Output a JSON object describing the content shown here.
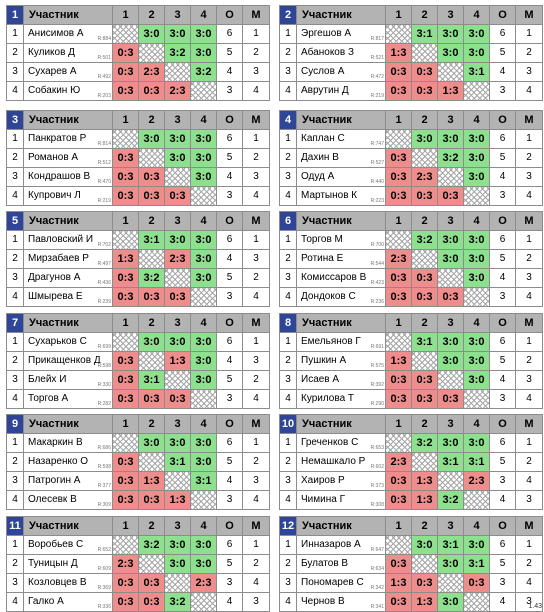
{
  "header": {
    "participant": "Участник",
    "c1": "1",
    "c2": "2",
    "c3": "3",
    "c4": "4",
    "points": "О",
    "place": "М"
  },
  "version": "1.43",
  "colors": {
    "win": "#8de08d",
    "loss": "#ef8d8d",
    "header": "#b3b3b3",
    "group_number": "#2f4597"
  },
  "groups": [
    {
      "num": "1",
      "rows": [
        {
          "name": "Анисимов А",
          "rating": "R:884",
          "s": [
            "",
            "3:0",
            "3:0",
            "3:0"
          ],
          "o": "6",
          "m": "1"
        },
        {
          "name": "Куликов Д",
          "rating": "R:501",
          "s": [
            "0:3",
            "",
            "3:2",
            "3:0"
          ],
          "o": "5",
          "m": "2"
        },
        {
          "name": "Сухарев А",
          "rating": "R:492",
          "s": [
            "0:3",
            "2:3",
            "",
            "3:2"
          ],
          "o": "4",
          "m": "3"
        },
        {
          "name": "Собакин Ю",
          "rating": "R:203",
          "s": [
            "0:3",
            "0:3",
            "2:3",
            ""
          ],
          "o": "3",
          "m": "4"
        }
      ]
    },
    {
      "num": "2",
      "rows": [
        {
          "name": "Эргешов А",
          "rating": "R:817",
          "s": [
            "",
            "3:1",
            "3:0",
            "3:0"
          ],
          "o": "6",
          "m": "1"
        },
        {
          "name": "Абаноков З",
          "rating": "R:521",
          "s": [
            "1:3",
            "",
            "3:0",
            "3:0"
          ],
          "o": "5",
          "m": "2"
        },
        {
          "name": "Суслов А",
          "rating": "R:472",
          "s": [
            "0:3",
            "0:3",
            "",
            "3:1"
          ],
          "o": "4",
          "m": "3"
        },
        {
          "name": "Аврутин Д",
          "rating": "R:219",
          "s": [
            "0:3",
            "0:3",
            "1:3",
            ""
          ],
          "o": "3",
          "m": "4"
        }
      ]
    },
    {
      "num": "3",
      "rows": [
        {
          "name": "Панкратов Р",
          "rating": "R:814",
          "s": [
            "",
            "3:0",
            "3:0",
            "3:0"
          ],
          "o": "6",
          "m": "1"
        },
        {
          "name": "Романов А",
          "rating": "R:512",
          "s": [
            "0:3",
            "",
            "3:0",
            "3:0"
          ],
          "o": "5",
          "m": "2"
        },
        {
          "name": "Кондрашов В",
          "rating": "R:470",
          "s": [
            "0:3",
            "0:3",
            "",
            "3:0"
          ],
          "o": "4",
          "m": "3"
        },
        {
          "name": "Купрович Л",
          "rating": "R:219",
          "s": [
            "0:3",
            "0:3",
            "0:3",
            ""
          ],
          "o": "3",
          "m": "4"
        }
      ]
    },
    {
      "num": "4",
      "rows": [
        {
          "name": "Каплан С",
          "rating": "R:747",
          "s": [
            "",
            "3:0",
            "3:0",
            "3:0"
          ],
          "o": "6",
          "m": "1"
        },
        {
          "name": "Дахин В",
          "rating": "R:527",
          "s": [
            "0:3",
            "",
            "3:2",
            "3:0"
          ],
          "o": "5",
          "m": "2"
        },
        {
          "name": "Одуд А",
          "rating": "R:440",
          "s": [
            "0:3",
            "2:3",
            "",
            "3:0"
          ],
          "o": "4",
          "m": "3"
        },
        {
          "name": "Мартынов К",
          "rating": "R:223",
          "s": [
            "0:3",
            "0:3",
            "0:3",
            ""
          ],
          "o": "3",
          "m": "4"
        }
      ]
    },
    {
      "num": "5",
      "rows": [
        {
          "name": "Павловский И",
          "rating": "R:702",
          "s": [
            "",
            "3:1",
            "3:0",
            "3:0"
          ],
          "o": "6",
          "m": "1"
        },
        {
          "name": "Мирзабаев Р",
          "rating": "R:497",
          "s": [
            "1:3",
            "",
            "2:3",
            "3:0"
          ],
          "o": "4",
          "m": "3"
        },
        {
          "name": "Драгунов А",
          "rating": "R:436",
          "s": [
            "0:3",
            "3:2",
            "",
            "3:0"
          ],
          "o": "5",
          "m": "2"
        },
        {
          "name": "Шмырева Е",
          "rating": "R:239",
          "s": [
            "0:3",
            "0:3",
            "0:3",
            ""
          ],
          "o": "3",
          "m": "4"
        }
      ]
    },
    {
      "num": "6",
      "rows": [
        {
          "name": "Торгов М",
          "rating": "R:700",
          "s": [
            "",
            "3:2",
            "3:0",
            "3:0"
          ],
          "o": "6",
          "m": "1"
        },
        {
          "name": "Ротина Е",
          "rating": "R:544",
          "s": [
            "2:3",
            "",
            "3:0",
            "3:0"
          ],
          "o": "5",
          "m": "2"
        },
        {
          "name": "Комиссаров В",
          "rating": "R:423",
          "s": [
            "0:3",
            "0:3",
            "",
            "3:0"
          ],
          "o": "4",
          "m": "3"
        },
        {
          "name": "Дондоков С",
          "rating": "R:236",
          "s": [
            "0:3",
            "0:3",
            "0:3",
            ""
          ],
          "o": "3",
          "m": "4"
        }
      ]
    },
    {
      "num": "7",
      "rows": [
        {
          "name": "Сухарьков С",
          "rating": "R:699",
          "s": [
            "",
            "3:0",
            "3:0",
            "3:0"
          ],
          "o": "6",
          "m": "1"
        },
        {
          "name": "Прикащенков Д",
          "rating": "R:598",
          "s": [
            "0:3",
            "",
            "1:3",
            "3:0"
          ],
          "o": "4",
          "m": "3"
        },
        {
          "name": "Блейх И",
          "rating": "R:330",
          "s": [
            "0:3",
            "3:1",
            "",
            "3:0"
          ],
          "o": "5",
          "m": "2"
        },
        {
          "name": "Торгов А",
          "rating": "R:282",
          "s": [
            "0:3",
            "0:3",
            "0:3",
            ""
          ],
          "o": "3",
          "m": "4"
        }
      ]
    },
    {
      "num": "8",
      "rows": [
        {
          "name": "Емельянов Г",
          "rating": "R:691",
          "s": [
            "",
            "3:1",
            "3:0",
            "3:0"
          ],
          "o": "6",
          "m": "1"
        },
        {
          "name": "Пушкин А",
          "rating": "R:575",
          "s": [
            "1:3",
            "",
            "3:0",
            "3:0"
          ],
          "o": "5",
          "m": "2"
        },
        {
          "name": "Исаев А",
          "rating": "R:392",
          "s": [
            "0:3",
            "0:3",
            "",
            "3:0"
          ],
          "o": "4",
          "m": "3"
        },
        {
          "name": "Курилова Т",
          "rating": "R:290",
          "s": [
            "0:3",
            "0:3",
            "0:3",
            ""
          ],
          "o": "3",
          "m": "4"
        }
      ]
    },
    {
      "num": "9",
      "rows": [
        {
          "name": "Макаркин В",
          "rating": "R:686",
          "s": [
            "",
            "3:0",
            "3:0",
            "3:0"
          ],
          "o": "6",
          "m": "1"
        },
        {
          "name": "Назаренко О",
          "rating": "R:598",
          "s": [
            "0:3",
            "",
            "3:1",
            "3:0"
          ],
          "o": "5",
          "m": "2"
        },
        {
          "name": "Патрогин А",
          "rating": "R:377",
          "s": [
            "0:3",
            "1:3",
            "",
            "3:1"
          ],
          "o": "4",
          "m": "3"
        },
        {
          "name": "Олесевк В",
          "rating": "R:309",
          "s": [
            "0:3",
            "0:3",
            "1:3",
            ""
          ],
          "o": "3",
          "m": "4"
        }
      ]
    },
    {
      "num": "10",
      "rows": [
        {
          "name": "Греченков С",
          "rating": "R:653",
          "s": [
            "",
            "3:2",
            "3:0",
            "3:0"
          ],
          "o": "6",
          "m": "1"
        },
        {
          "name": "Немашкало Р",
          "rating": "R:602",
          "s": [
            "2:3",
            "",
            "3:1",
            "3:1"
          ],
          "o": "5",
          "m": "2"
        },
        {
          "name": "Хаиров Р",
          "rating": "R:373",
          "s": [
            "0:3",
            "1:3",
            "",
            "2:3"
          ],
          "o": "3",
          "m": "4"
        },
        {
          "name": "Чимина Г",
          "rating": "R:308",
          "s": [
            "0:3",
            "1:3",
            "3:2",
            ""
          ],
          "o": "4",
          "m": "3"
        }
      ]
    },
    {
      "num": "11",
      "rows": [
        {
          "name": "Воробьев С",
          "rating": "R:652",
          "s": [
            "",
            "3:2",
            "3:0",
            "3:0"
          ],
          "o": "6",
          "m": "1"
        },
        {
          "name": "Туницын Д",
          "rating": "R:609",
          "s": [
            "2:3",
            "",
            "3:0",
            "3:0"
          ],
          "o": "5",
          "m": "2"
        },
        {
          "name": "Козловцев В",
          "rating": "R:369",
          "s": [
            "0:3",
            "0:3",
            "",
            "2:3"
          ],
          "o": "3",
          "m": "4"
        },
        {
          "name": "Галко А",
          "rating": "R:336",
          "s": [
            "0:3",
            "0:3",
            "3:2",
            ""
          ],
          "o": "4",
          "m": "3"
        }
      ]
    },
    {
      "num": "12",
      "rows": [
        {
          "name": "Инназаров А",
          "rating": "R:647",
          "s": [
            "",
            "3:0",
            "3:1",
            "3:0"
          ],
          "o": "6",
          "m": "1"
        },
        {
          "name": "Булатов В",
          "rating": "R:634",
          "s": [
            "0:3",
            "",
            "3:0",
            "3:1"
          ],
          "o": "5",
          "m": "2"
        },
        {
          "name": "Пономарев С",
          "rating": "R:342",
          "s": [
            "1:3",
            "0:3",
            "",
            "0:3"
          ],
          "o": "3",
          "m": "4"
        },
        {
          "name": "Чернов В",
          "rating": "R:341",
          "s": [
            "0:3",
            "1:3",
            "3:0",
            ""
          ],
          "o": "4",
          "m": "3"
        }
      ]
    }
  ]
}
